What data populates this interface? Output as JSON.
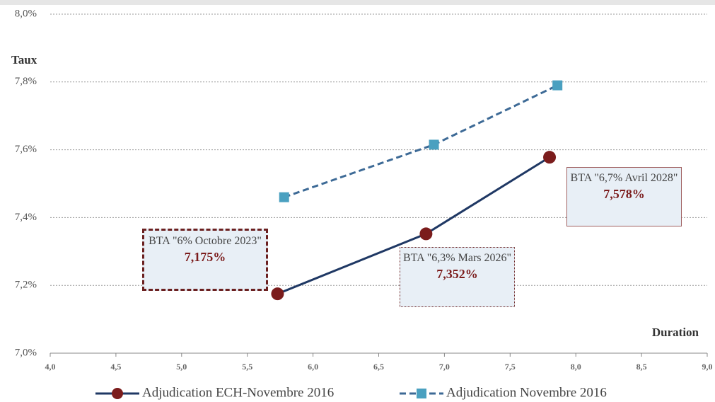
{
  "chart_data": {
    "type": "line",
    "y_label": "Taux",
    "x_label": "Duration",
    "xlim": [
      4.0,
      9.0
    ],
    "xticks": [
      {
        "value": 4.0,
        "label": "4,0"
      },
      {
        "value": 4.5,
        "label": "4,5"
      },
      {
        "value": 5.0,
        "label": "5,0"
      },
      {
        "value": 5.5,
        "label": "5,5"
      },
      {
        "value": 6.0,
        "label": "6,0"
      },
      {
        "value": 6.5,
        "label": "6,5"
      },
      {
        "value": 7.0,
        "label": "7,0"
      },
      {
        "value": 7.5,
        "label": "7,5"
      },
      {
        "value": 8.0,
        "label": "8,0"
      },
      {
        "value": 8.5,
        "label": "8,5"
      },
      {
        "value": 9.0,
        "label": "9,0"
      }
    ],
    "ylim": [
      7.0,
      8.0
    ],
    "yticks": [
      {
        "value": 7.0,
        "label": "7,0%"
      },
      {
        "value": 7.2,
        "label": "7,2%"
      },
      {
        "value": 7.4,
        "label": "7,4%"
      },
      {
        "value": 7.6,
        "label": "7,6%"
      },
      {
        "value": 7.8,
        "label": "7,8%"
      },
      {
        "value": 8.0,
        "label": "8,0%"
      }
    ],
    "grid": true,
    "series": [
      {
        "name": "Adjudication ECH-Novembre 2016",
        "color": "#1f3864",
        "marker_color": "#7b1c1c",
        "marker": "circle",
        "dash": false,
        "x": [
          5.73,
          6.86,
          7.8
        ],
        "values": [
          7.175,
          7.352,
          7.578
        ],
        "value_labels": [
          "7,175%",
          "7,352%",
          "7,578%"
        ],
        "point_names": [
          "BTA \"6% Octobre 2023\"",
          "BTA \"6,3% Mars 2026\"",
          "BTA \"6,7% Avril 2028\""
        ]
      },
      {
        "name": "Adjudication Novembre 2016",
        "color": "#3d6a96",
        "marker_color": "#4aa0c0",
        "marker": "square",
        "dash": true,
        "x": [
          5.78,
          6.92,
          7.86
        ],
        "values": [
          7.46,
          7.615,
          7.79
        ]
      }
    ]
  }
}
